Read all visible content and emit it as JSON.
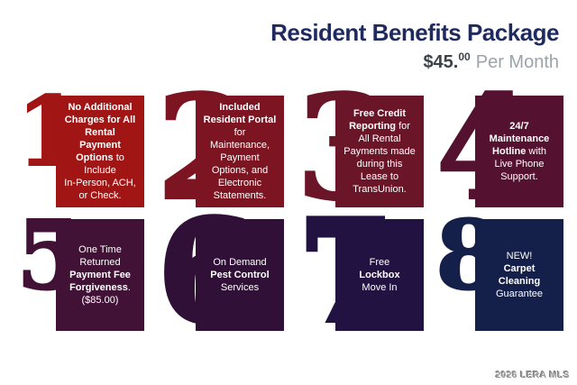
{
  "header": {
    "title": "Resident Benefits Package",
    "price_dollars": "$45.",
    "price_cents": "00",
    "price_suffix": "Per Month"
  },
  "colors": {
    "title": "#1F2A5E",
    "price": "#3C4249",
    "per_month": "#9BA3AB",
    "card_text": "#FFFFFF",
    "background": "#FFFFFF",
    "watermark": "#9B9B9B"
  },
  "watermark": "2026 LERA MLS",
  "cards": [
    {
      "number": "1",
      "color": "#A21515",
      "lines": [
        [
          {
            "text": "No Additional",
            "bold": true
          }
        ],
        [
          {
            "text": "Charges for All",
            "bold": true
          }
        ],
        [
          {
            "text": "Rental",
            "bold": true
          }
        ],
        [
          {
            "text": "Payment",
            "bold": true
          }
        ],
        [
          {
            "text": "Options",
            "bold": true
          },
          {
            "text": " to",
            "bold": false
          }
        ],
        [
          {
            "text": "Include",
            "bold": false
          }
        ],
        [
          {
            "text": "In-Person, ACH,",
            "bold": false
          }
        ],
        [
          {
            "text": "or Check.",
            "bold": false
          }
        ]
      ]
    },
    {
      "number": "2",
      "color": "#7D1421",
      "lines": [
        [
          {
            "text": "Included",
            "bold": true
          }
        ],
        [
          {
            "text": "Resident Portal",
            "bold": true
          }
        ],
        [
          {
            "text": "for",
            "bold": false
          }
        ],
        [
          {
            "text": "Maintenance,",
            "bold": false
          }
        ],
        [
          {
            "text": "Payment",
            "bold": false
          }
        ],
        [
          {
            "text": "Options, and",
            "bold": false
          }
        ],
        [
          {
            "text": "Electronic",
            "bold": false
          }
        ],
        [
          {
            "text": "Statements.",
            "bold": false
          }
        ]
      ]
    },
    {
      "number": "3",
      "color": "#6B1529",
      "lines": [
        [
          {
            "text": "Free Credit",
            "bold": true
          }
        ],
        [
          {
            "text": "Reporting",
            "bold": true
          },
          {
            "text": " for",
            "bold": false
          }
        ],
        [
          {
            "text": "All Rental",
            "bold": false
          }
        ],
        [
          {
            "text": "Payments made",
            "bold": false
          }
        ],
        [
          {
            "text": "during this",
            "bold": false
          }
        ],
        [
          {
            "text": "Lease to",
            "bold": false
          }
        ],
        [
          {
            "text": "TransUnion.",
            "bold": false
          }
        ]
      ]
    },
    {
      "number": "4",
      "color": "#551230",
      "lines": [
        [
          {
            "text": "24/7",
            "bold": true
          }
        ],
        [
          {
            "text": "Maintenance",
            "bold": true
          }
        ],
        [
          {
            "text": "Hotline",
            "bold": true
          },
          {
            "text": " with",
            "bold": false
          }
        ],
        [
          {
            "text": "Live Phone",
            "bold": false
          }
        ],
        [
          {
            "text": "Support.",
            "bold": false
          }
        ]
      ]
    },
    {
      "number": "5",
      "color": "#421136",
      "lines": [
        [
          {
            "text": "One Time",
            "bold": false
          }
        ],
        [
          {
            "text": "Returned",
            "bold": false
          }
        ],
        [
          {
            "text": "Payment Fee",
            "bold": true
          }
        ],
        [
          {
            "text": "Forgiveness",
            "bold": true
          },
          {
            "text": ".",
            "bold": false
          }
        ],
        [
          {
            "text": "($85.00)",
            "bold": false
          }
        ]
      ]
    },
    {
      "number": "6",
      "color": "#301037",
      "lines": [
        [
          {
            "text": "On Demand",
            "bold": false
          }
        ],
        [
          {
            "text": "Pest Control",
            "bold": true
          }
        ],
        [
          {
            "text": "Services",
            "bold": false
          }
        ]
      ]
    },
    {
      "number": "7",
      "color": "#221241",
      "lines": [
        [
          {
            "text": "Free",
            "bold": false
          }
        ],
        [
          {
            "text": "Lockbox",
            "bold": true
          }
        ],
        [
          {
            "text": "Move In",
            "bold": false
          }
        ]
      ]
    },
    {
      "number": "8",
      "color": "#142049",
      "lines": [
        [
          {
            "text": "NEW!",
            "bold": false
          }
        ],
        [
          {
            "text": "Carpet",
            "bold": true
          }
        ],
        [
          {
            "text": "Cleaning",
            "bold": true
          }
        ],
        [
          {
            "text": "Guarantee",
            "bold": false
          }
        ]
      ]
    }
  ]
}
